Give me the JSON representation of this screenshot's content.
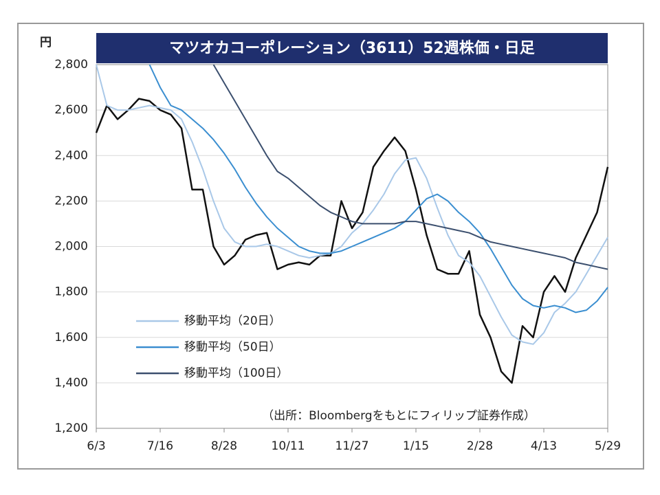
{
  "chart_data": {
    "type": "line",
    "title": "マツオカコーポレーション（3611）52週株価・日足",
    "y_unit": "円",
    "note": "（出所：Bloombergをもとにフィリップ証券作成）",
    "categories": [
      "6/3",
      null,
      null,
      null,
      null,
      null,
      "7/16",
      null,
      null,
      null,
      null,
      null,
      "8/28",
      null,
      null,
      null,
      null,
      null,
      "10/11",
      null,
      null,
      null,
      null,
      null,
      "11/27",
      null,
      null,
      null,
      null,
      null,
      "1/15",
      null,
      null,
      null,
      null,
      null,
      "2/28",
      null,
      null,
      null,
      null,
      null,
      "4/13",
      null,
      null,
      null,
      null,
      null,
      "5/29"
    ],
    "series": [
      {
        "color": "#111111",
        "values": [
          2500,
          2620,
          2560,
          2600,
          2650,
          2640,
          2600,
          2580,
          2520,
          2250,
          2250,
          2000,
          1920,
          1960,
          2030,
          2050,
          2060,
          1900,
          1920,
          1930,
          1920,
          1960,
          1960,
          2200,
          2080,
          2150,
          2350,
          2420,
          2480,
          2420,
          2250,
          2050,
          1900,
          1880,
          1880,
          1980,
          1700,
          1600,
          1450,
          1400,
          1650,
          1600,
          1800,
          1870,
          1800,
          1950,
          2050,
          2150,
          2350
        ]
      },
      {
        "name": "移動平均（20日）",
        "color": "#a9c8e8",
        "values": [
          2800,
          2620,
          2600,
          2600,
          2610,
          2620,
          2610,
          2600,
          2560,
          2460,
          2340,
          2200,
          2080,
          2020,
          2000,
          2000,
          2010,
          2000,
          1980,
          1960,
          1950,
          1960,
          1970,
          2000,
          2060,
          2100,
          2160,
          2230,
          2320,
          2380,
          2390,
          2300,
          2170,
          2050,
          1960,
          1930,
          1870,
          1780,
          1690,
          1610,
          1580,
          1570,
          1620,
          1710,
          1750,
          1800,
          1880,
          1960,
          2040
        ]
      },
      {
        "name": "移動平均（50日）",
        "color": "#3a8ed0",
        "values": [
          null,
          null,
          null,
          null,
          null,
          2800,
          2700,
          2620,
          2600,
          2560,
          2520,
          2470,
          2410,
          2340,
          2260,
          2190,
          2130,
          2080,
          2040,
          2000,
          1980,
          1970,
          1970,
          1980,
          2000,
          2020,
          2040,
          2060,
          2080,
          2110,
          2160,
          2210,
          2230,
          2200,
          2150,
          2110,
          2060,
          1990,
          1910,
          1830,
          1770,
          1740,
          1730,
          1740,
          1730,
          1710,
          1720,
          1760,
          1820
        ]
      },
      {
        "name": "移動平均（100日）",
        "color": "#3b4f6e",
        "values": [
          null,
          null,
          null,
          null,
          null,
          null,
          null,
          null,
          null,
          null,
          null,
          2800,
          2720,
          2640,
          2560,
          2480,
          2400,
          2330,
          2300,
          2260,
          2220,
          2180,
          2150,
          2130,
          2110,
          2100,
          2100,
          2100,
          2100,
          2110,
          2110,
          2100,
          2090,
          2080,
          2070,
          2060,
          2040,
          2020,
          2010,
          2000,
          1990,
          1980,
          1970,
          1960,
          1950,
          1930,
          1920,
          1910,
          1900
        ]
      }
    ],
    "ylim": [
      1200,
      2800
    ],
    "yticks": [
      {
        "value": 1200,
        "label": "1,200"
      },
      {
        "value": 1400,
        "label": "1,400"
      },
      {
        "value": 1600,
        "label": "1,600"
      },
      {
        "value": 1800,
        "label": "1,800"
      },
      {
        "value": 2000,
        "label": "2,000"
      },
      {
        "value": 2200,
        "label": "2,200"
      },
      {
        "value": 2400,
        "label": "2,400"
      },
      {
        "value": 2600,
        "label": "2,600"
      },
      {
        "value": 2800,
        "label": "2,800"
      }
    ],
    "grid": true
  }
}
